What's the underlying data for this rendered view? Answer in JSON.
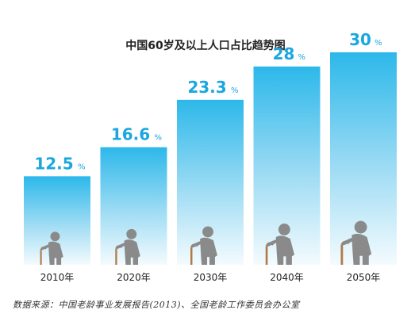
{
  "chart_data": {
    "type": "bar",
    "title": "中国60岁及以上人口占比趋势图",
    "categories": [
      "2010年",
      "2020年",
      "2030年",
      "2040年",
      "2050年"
    ],
    "values": [
      12.5,
      16.6,
      23.3,
      28,
      30
    ],
    "value_labels": [
      "12.5",
      "16.6",
      "23.3",
      "28",
      "30"
    ],
    "unit": "%",
    "ylim": [
      0,
      30
    ],
    "grid": false,
    "legend": "none",
    "icon": "elderly-person-with-cane-icon"
  },
  "source": "数据来源：中国老龄事业发展报告(2013)、全国老龄工作委员会办公室",
  "colors": {
    "bar_top": "#2cb8ea",
    "bar_bottom": "#f4fbfe",
    "value_text": "#1aa7e0",
    "icon": "#8a8a8a"
  }
}
